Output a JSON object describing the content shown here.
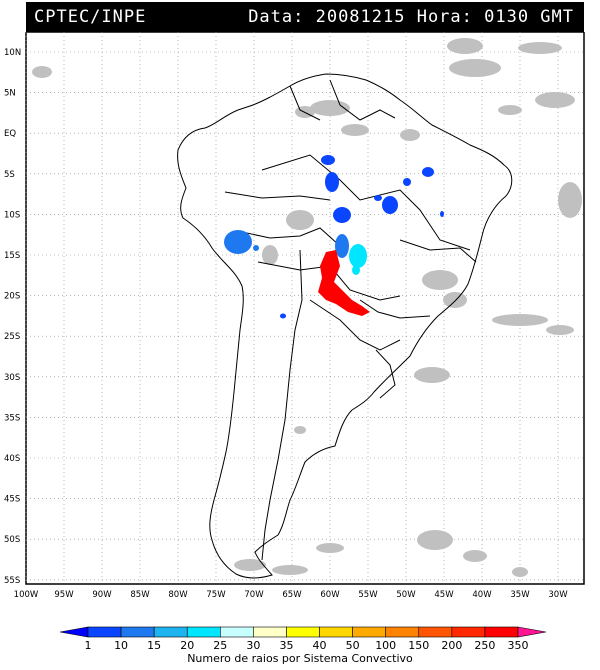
{
  "header": {
    "org": "CPTEC/INPE",
    "info": "Data: 20081215 Hora: 0130 GMT"
  },
  "map": {
    "lat_labels": [
      "10N",
      "5N",
      "EQ",
      "5S",
      "10S",
      "15S",
      "20S",
      "25S",
      "30S",
      "35S",
      "40S",
      "45S",
      "50S",
      "55S"
    ],
    "lon_labels": [
      "100W",
      "95W",
      "90W",
      "85W",
      "80W",
      "75W",
      "70W",
      "65W",
      "60W",
      "55W",
      "50W",
      "45W",
      "40W",
      "35W",
      "30W"
    ]
  },
  "legend": {
    "values": [
      "1",
      "10",
      "15",
      "20",
      "25",
      "30",
      "35",
      "40",
      "50",
      "100",
      "150",
      "200",
      "250",
      "350"
    ],
    "colors": [
      "#0000ff",
      "#0a45ff",
      "#1e78f0",
      "#1eb4f0",
      "#00e6ff",
      "#c8ffff",
      "#ffffc8",
      "#ffff00",
      "#ffd700",
      "#ffaa00",
      "#ff8200",
      "#ff5500",
      "#ff2800",
      "#ff0000",
      "#ff1493"
    ],
    "caption": "Numero de raios por Sistema Convectivo"
  }
}
